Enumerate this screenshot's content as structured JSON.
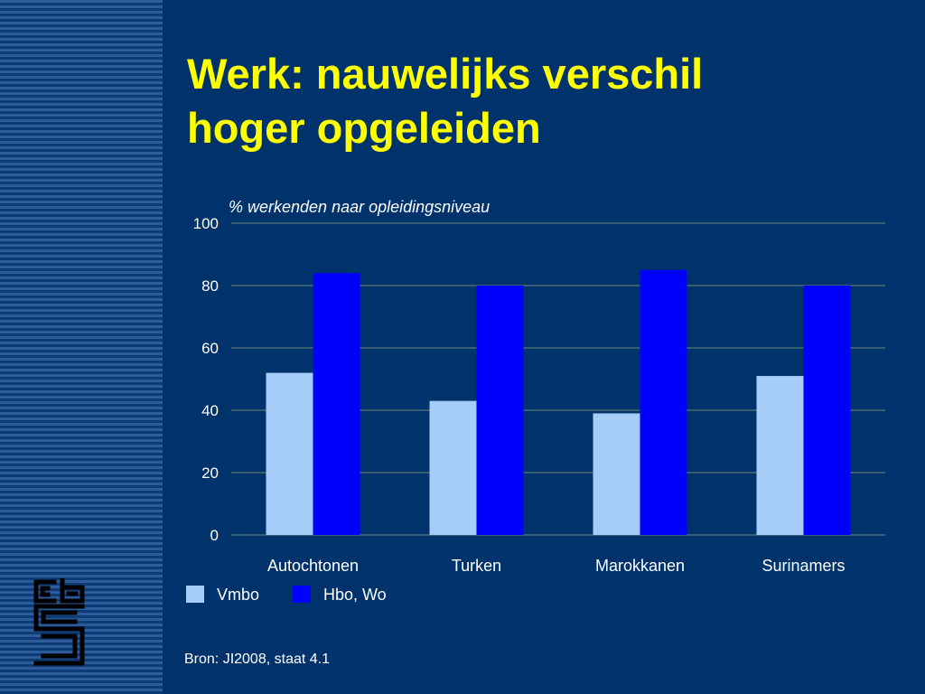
{
  "slide": {
    "title_lines": [
      "Werk: nauwelijks verschil",
      "hoger opgeleiden"
    ],
    "source": "Bron: JI2008, staat 4.1",
    "logo": "cbs-logo-icon"
  },
  "colors": {
    "background": "#00336b",
    "title": "#ffff00",
    "text": "#ffffff",
    "gridline": "#6f8a78",
    "vmbo": "#a6cdf7",
    "hbo_wo": "#0000ff"
  },
  "chart_data": {
    "type": "bar",
    "subtitle": "% werkenden naar opleidingsniveau",
    "categories": [
      "Autochtonen",
      "Turken",
      "Marokkanen",
      "Surinamers"
    ],
    "series": [
      {
        "name": "Vmbo",
        "values": [
          52,
          43,
          39,
          51
        ],
        "color": "#a6cdf7"
      },
      {
        "name": "Hbo, Wo",
        "values": [
          84,
          80,
          85,
          80
        ],
        "color": "#0000ff"
      }
    ],
    "ylim": [
      0,
      100
    ],
    "yticks": [
      0,
      20,
      40,
      60,
      80,
      100
    ],
    "grid": true,
    "legend": "bottom-left"
  }
}
